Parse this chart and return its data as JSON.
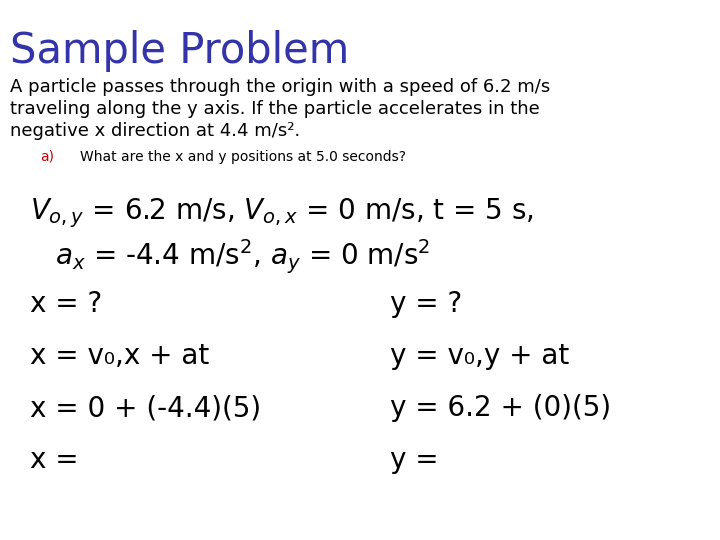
{
  "title": "Sample Problem",
  "title_color": "#3333aa",
  "title_fontsize": 30,
  "background_color": "#ffffff",
  "body_color": "#000000",
  "sub_label_color": "#cc0000",
  "para_fontsize": 13,
  "sub_fontsize": 10,
  "eq_fontsize": 20,
  "col_fontsize": 20,
  "paragraph_lines": [
    "A particle passes through the origin with a speed of 6.2 m/s",
    "traveling along the y axis. If the particle accelerates in the",
    "negative x direction at 4.4 m/s²."
  ],
  "sub_label": "a)",
  "sub_question": "What are the x and y positions at 5.0 seconds?",
  "col1_lines": [
    "x = ?",
    "x = v₀,x + at",
    "x = 0 + (-4.4)(5)",
    "x ="
  ],
  "col2_lines": [
    "y = ?",
    "y = v₀,y + at",
    "y = 6.2 + (0)(5)",
    "y ="
  ]
}
